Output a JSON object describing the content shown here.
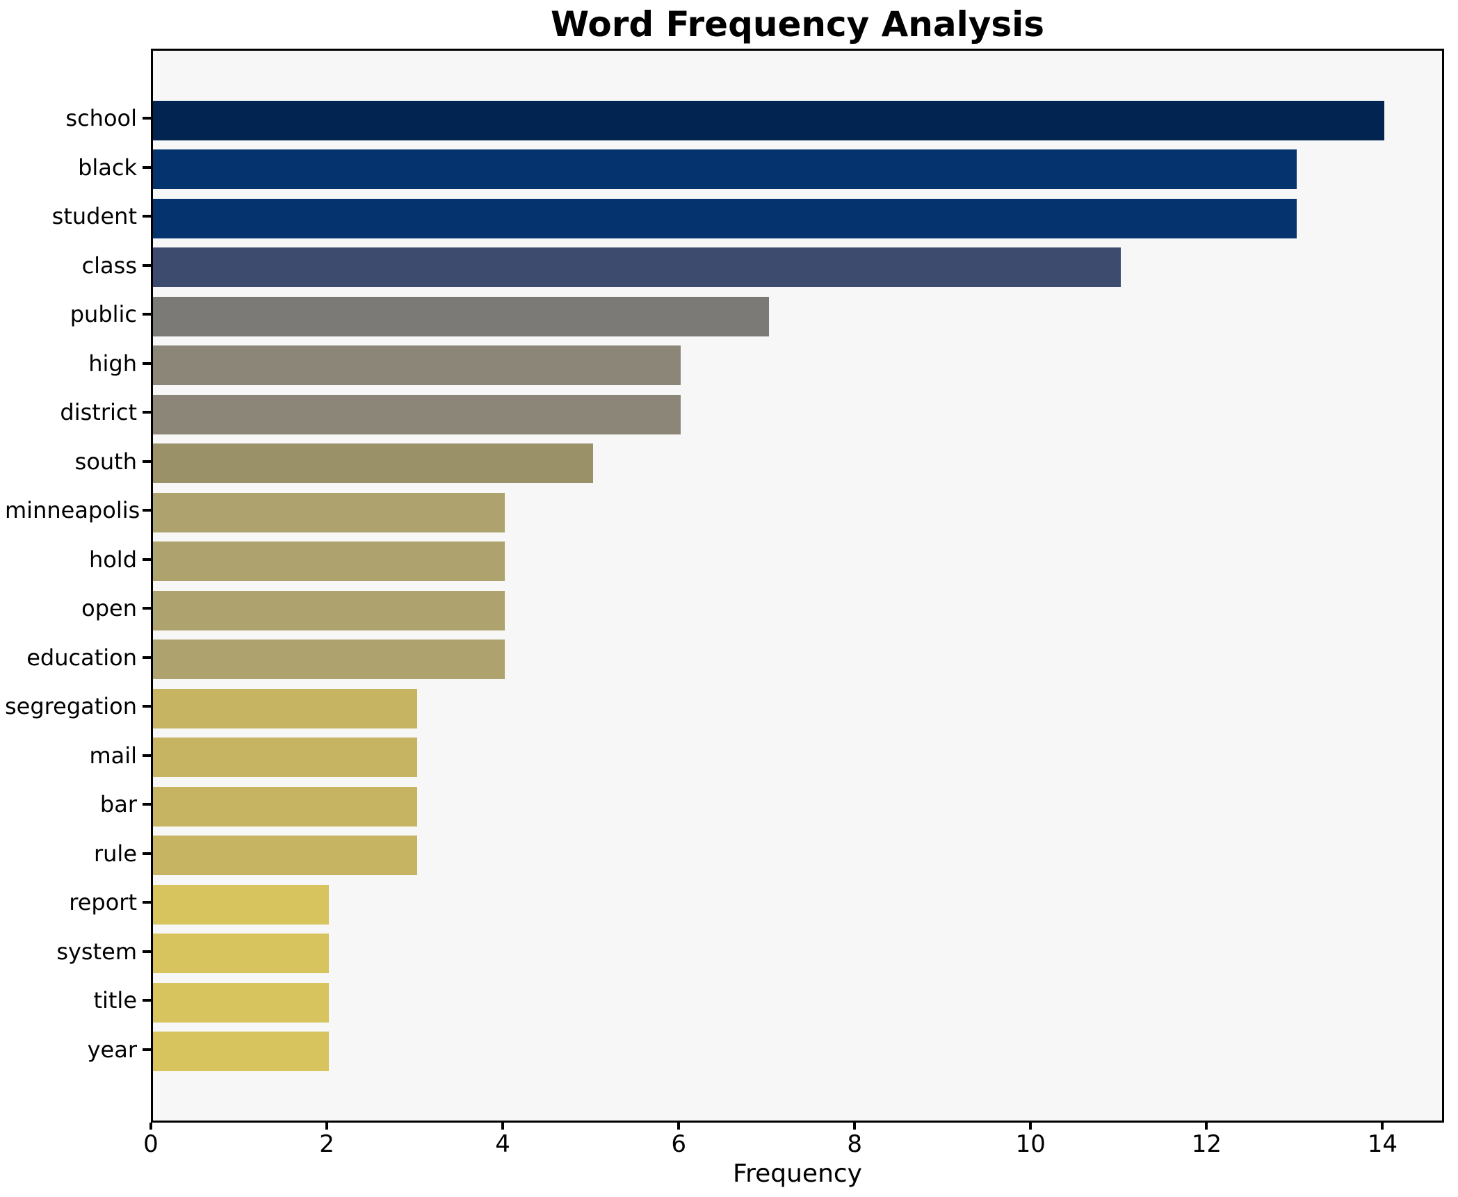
{
  "chart_data": {
    "type": "bar",
    "orientation": "horizontal",
    "title": "Word Frequency Analysis",
    "xlabel": "Frequency",
    "ylabel": "",
    "categories": [
      "school",
      "black",
      "student",
      "class",
      "public",
      "high",
      "district",
      "south",
      "minneapolis",
      "hold",
      "open",
      "education",
      "segregation",
      "mail",
      "bar",
      "rule",
      "report",
      "system",
      "title",
      "year"
    ],
    "values": [
      14,
      13,
      13,
      11,
      7,
      6,
      6,
      5,
      4,
      4,
      4,
      4,
      3,
      3,
      3,
      3,
      2,
      2,
      2,
      2
    ],
    "bar_colors": [
      "#012550",
      "#04336e",
      "#04336e",
      "#3d4b6e",
      "#7b7a77",
      "#8c8678",
      "#8c8678",
      "#9b9168",
      "#aea26e",
      "#aea26e",
      "#aea26e",
      "#aea26e",
      "#c6b462",
      "#c6b462",
      "#c6b462",
      "#c6b462",
      "#d8c45e",
      "#d8c45e",
      "#d8c45e",
      "#d8c45e"
    ],
    "x_ticks": [
      0,
      2,
      4,
      6,
      8,
      10,
      12,
      14
    ],
    "xlim": [
      0,
      14.7
    ],
    "grid": false,
    "legend": null,
    "plot_background": "#f7f7f7",
    "frame_color": "#000000",
    "text_color": "#000000"
  }
}
